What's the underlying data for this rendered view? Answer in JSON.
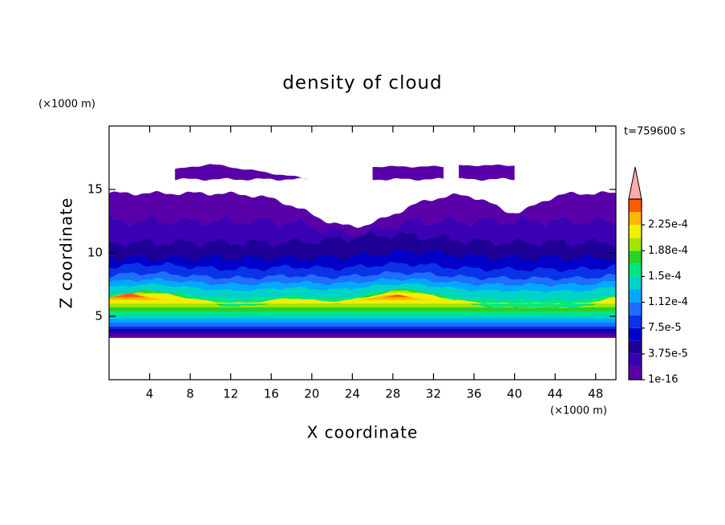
{
  "chart_data": {
    "type": "contour",
    "title": "density of cloud",
    "xlabel": "X coordinate",
    "ylabel": "Z coordinate",
    "x_unit": "(×1000 m)",
    "y_unit": "(×1000 m)",
    "time_label": "t=759600 s",
    "xlim": [
      0,
      50
    ],
    "ylim": [
      0,
      20
    ],
    "xticks": [
      4,
      8,
      12,
      16,
      20,
      24,
      28,
      32,
      36,
      40,
      44,
      48
    ],
    "yticks": [
      5,
      10,
      15
    ],
    "colorlim": [
      0,
      0.0002625
    ],
    "levels": [
      0,
      1.875e-05,
      3.75e-05,
      5.625e-05,
      7.5e-05,
      9.375e-05,
      0.0001125,
      0.00013125,
      0.00015,
      0.00016875,
      0.0001875,
      0.00020625,
      0.000225,
      0.00024375
    ],
    "colors": [
      "#5a00a8",
      "#3c00b4",
      "#1e0096",
      "#0000c8",
      "#0a32e6",
      "#1e6eff",
      "#00a8ff",
      "#00d2c8",
      "#00e682",
      "#28d228",
      "#a0e600",
      "#f0f000",
      "#ffb400",
      "#ff5a00"
    ],
    "extend_color": "#ffaaaa",
    "colorbar_ticks": [
      {
        "value": 0,
        "label": "1e-16"
      },
      {
        "value": 3.75e-05,
        "label": "3.75e-5"
      },
      {
        "value": 7.5e-05,
        "label": "7.5e-5"
      },
      {
        "value": 0.0001125,
        "label": "1.12e-4"
      },
      {
        "value": 0.00015,
        "label": "1.5e-4"
      },
      {
        "value": 0.0001875,
        "label": "1.88e-4"
      },
      {
        "value": 0.000225,
        "label": "2.25e-4"
      }
    ]
  }
}
